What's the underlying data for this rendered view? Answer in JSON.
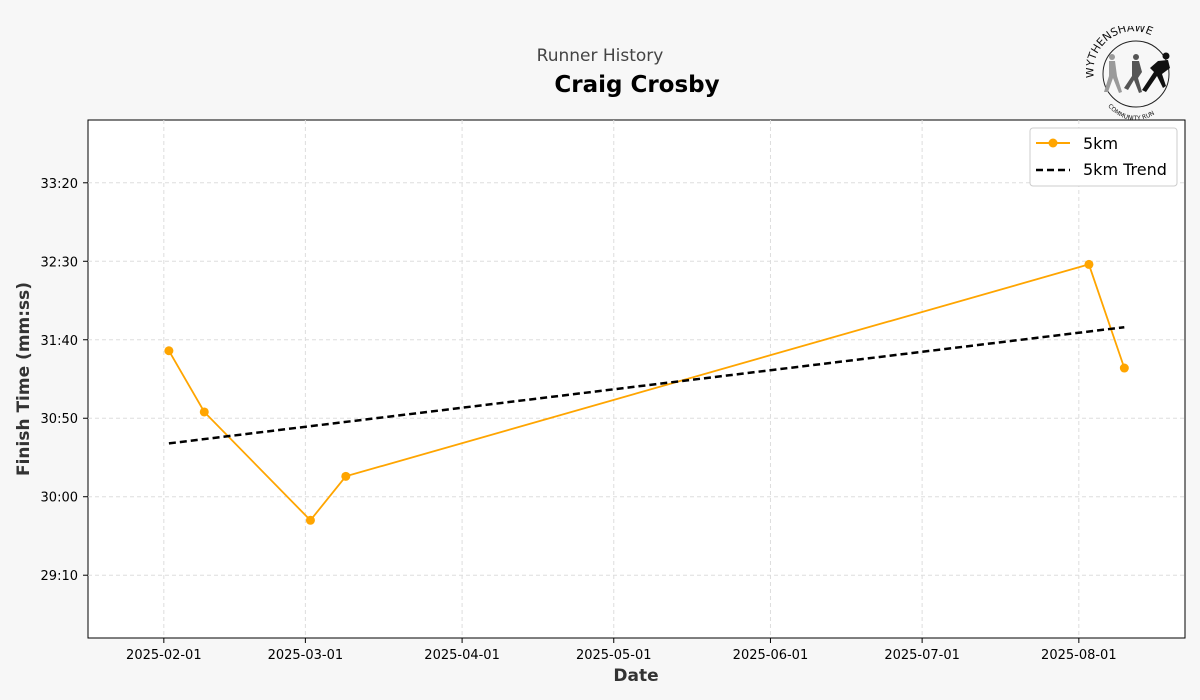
{
  "header": {
    "suptitle": "Runner History",
    "title": "Craig Crosby"
  },
  "logo": {
    "text_top": "WYTHENSHAWE",
    "text_bottom": "COMMUNITY RUN"
  },
  "colors": {
    "series": "#FFA500",
    "trend": "#000000",
    "grid": "#dddddd",
    "plot_bg": "#ffffff",
    "page_bg": "#f7f7f7"
  },
  "chart_data": {
    "type": "line",
    "xlabel": "Date",
    "ylabel": "Finish Time (mm:ss)",
    "xlim": [
      "2025-01-17",
      "2025-08-22"
    ],
    "ylim_seconds": [
      1710,
      2040
    ],
    "x_ticks": [
      "2025-02-01",
      "2025-03-01",
      "2025-04-01",
      "2025-05-01",
      "2025-06-01",
      "2025-07-01",
      "2025-08-01"
    ],
    "y_ticks": [
      "29:10",
      "30:00",
      "30:50",
      "31:40",
      "32:30",
      "33:20"
    ],
    "grid": true,
    "legend_position": "top-right",
    "series": [
      {
        "name": "5km",
        "style": "solid-line-with-markers",
        "points": [
          {
            "x": "2025-02-02",
            "y": "31:33"
          },
          {
            "x": "2025-02-09",
            "y": "30:54"
          },
          {
            "x": "2025-03-02",
            "y": "29:45"
          },
          {
            "x": "2025-03-09",
            "y": "30:13"
          },
          {
            "x": "2025-08-03",
            "y": "32:28"
          },
          {
            "x": "2025-08-10",
            "y": "31:22"
          }
        ]
      },
      {
        "name": "5km Trend",
        "style": "dashed-line",
        "points": [
          {
            "x": "2025-02-02",
            "y": "30:34"
          },
          {
            "x": "2025-08-10",
            "y": "31:48"
          }
        ]
      }
    ]
  }
}
